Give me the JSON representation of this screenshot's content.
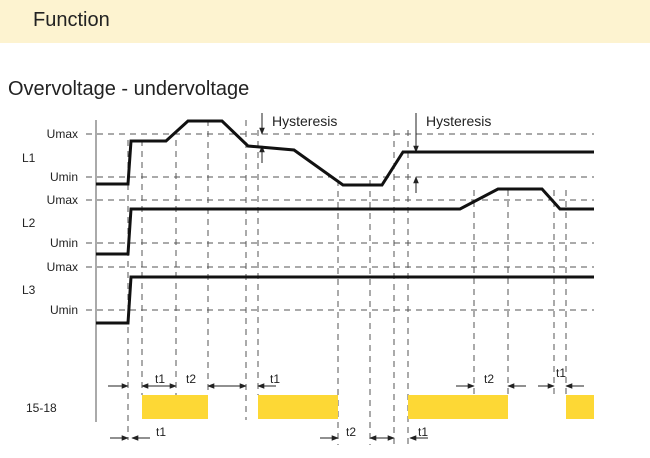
{
  "header": {
    "title": "Function"
  },
  "section_title": "Overvoltage - undervoltage",
  "labels": {
    "umax": "Umax",
    "umin": "Umin",
    "channels": [
      "L1",
      "L2",
      "L3"
    ],
    "hysteresis": "Hysteresis",
    "output": "15-18",
    "t1": "t1",
    "t2": "t2"
  },
  "colors": {
    "header_background": "#fdf3d0",
    "relay_on": "#fdd835",
    "line": "#111111",
    "guide": "#555555"
  }
}
